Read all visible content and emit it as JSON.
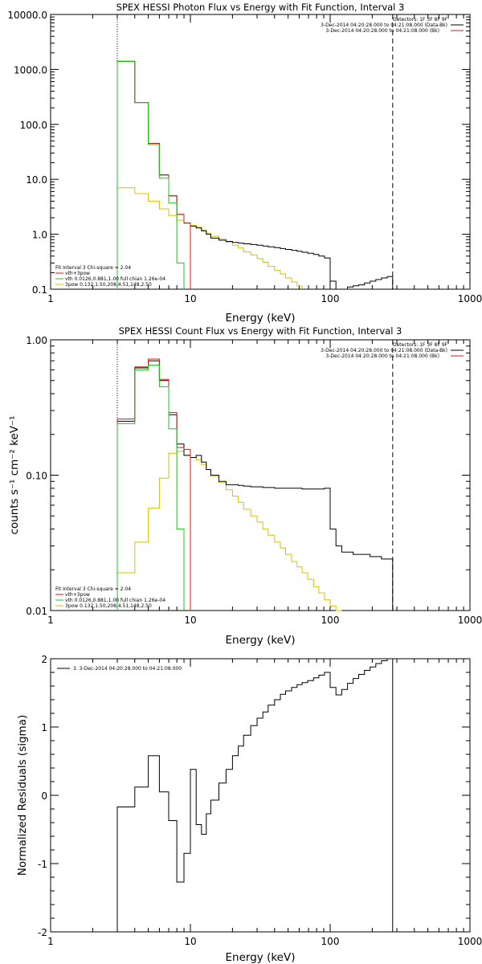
{
  "chart_data": [
    {
      "type": "line",
      "title": "SPEX HESSI Photon Flux vs Energy with Fit Function, Interval 3",
      "xlabel": "Energy (keV)",
      "ylabel": "",
      "xlog": true,
      "ylog": true,
      "xlim": [
        1,
        1000
      ],
      "ylim": [
        0.1,
        10000
      ],
      "x_ticks": [
        "1",
        "10",
        "100",
        "1000"
      ],
      "y_ticks": [
        "0.1",
        "1.0",
        "10.0",
        "100.0",
        "1000.0",
        "10000.0"
      ],
      "fit_range_keV": [
        3,
        280
      ],
      "legend_top": {
        "header": "Detectors: 1F 3F 8F 9F",
        "entries": [
          {
            "label": "3-Dec-2014 04:20:28.000 to 04:21:08.000 (Data-Bk)",
            "color": "#000000"
          },
          {
            "label": "3-Dec-2014 04:20:28.000 to 04:21:08.000 (Bk)",
            "color": "#d01818"
          }
        ]
      },
      "legend_bottom": [
        {
          "label": "Fit Interval 3   Chi-square = 2.04",
          "color": ""
        },
        {
          "label": "vth+3pow",
          "color": "#d01818"
        },
        {
          "label": "vth 0.0126,0.881,1.00  full chian 1.26e-04",
          "color": "#18c818"
        },
        {
          "label": "3pow 0.132,1.50,208,4.51,148,2.50",
          "color": "#d8c000"
        }
      ],
      "edges": [
        3,
        4,
        5,
        6,
        7,
        8,
        9,
        10,
        11,
        12,
        13,
        14,
        16,
        18,
        20,
        22,
        24,
        27,
        30,
        33,
        36,
        40,
        44,
        48,
        53,
        58,
        63,
        69,
        76,
        83,
        91,
        100,
        110,
        121,
        133,
        146,
        160,
        176,
        193,
        212,
        233,
        256,
        280
      ],
      "series": [
        {
          "color": "#000000",
          "values": [
            1400,
            250,
            45,
            12,
            5,
            2.3,
            1.6,
            1.4,
            1.3,
            1.15,
            1.0,
            0.85,
            0.78,
            0.74,
            0.71,
            0.69,
            0.67,
            0.65,
            0.63,
            0.61,
            0.59,
            0.57,
            0.55,
            0.53,
            0.51,
            0.49,
            0.47,
            0.45,
            0.43,
            0.4,
            0.37,
            0.14,
            0.1,
            0.1,
            0.11,
            0.115,
            0.12,
            0.13,
            0.14,
            0.15,
            0.16,
            0.17
          ]
        },
        {
          "color": "#d01818",
          "values": [
            1400,
            250,
            45,
            12,
            5,
            2.3,
            1.6
          ]
        },
        {
          "color": "#18c818",
          "values": [
            1400,
            250,
            43,
            10.5,
            3.7,
            0.3
          ]
        },
        {
          "color": "#d8c000",
          "values": [
            7,
            5.5,
            4,
            2.9,
            2.2,
            1.8,
            1.6,
            1.45,
            1.35,
            1.2,
            1.05,
            0.92,
            0.82,
            0.72,
            0.63,
            0.56,
            0.48,
            0.42,
            0.36,
            0.31,
            0.26,
            0.22,
            0.19,
            0.16,
            0.135,
            0.115
          ]
        }
      ]
    },
    {
      "type": "line",
      "title": "SPEX HESSI Count Flux vs Energy with Fit Function, Interval 3",
      "xlabel": "Energy (keV)",
      "ylabel": "counts s⁻¹ cm⁻² keV⁻¹",
      "xlog": true,
      "ylog": true,
      "xlim": [
        1,
        1000
      ],
      "ylim": [
        0.01,
        1.0
      ],
      "x_ticks": [
        "1",
        "10",
        "100",
        "1000"
      ],
      "y_ticks": [
        "0.01",
        "0.10",
        "1.00"
      ],
      "fit_range_keV": [
        3,
        280
      ],
      "legend_top": {
        "header": "Detectors: 1F 3F 8F 9F",
        "entries": [
          {
            "label": "3-Dec-2014 04:20:28.000 to 04:21:08.000 (Data-Bk)",
            "color": "#000000"
          },
          {
            "label": "3-Dec-2014 04:20:28.000 to 04:21:08.000 (Bk)",
            "color": "#d01818"
          }
        ]
      },
      "legend_bottom": [
        {
          "label": "Fit Interval 3   Chi-square = 2.04",
          "color": ""
        },
        {
          "label": "vth+3pow",
          "color": "#d01818"
        },
        {
          "label": "vth 0.0126,0.881,1.00  full chian 1.26e-04",
          "color": "#18c818"
        },
        {
          "label": "3pow 0.132,1.50,208,4.51,148,2.50",
          "color": "#d8c000"
        }
      ],
      "edges": [
        3,
        4,
        5,
        6,
        7,
        8,
        9,
        10,
        11,
        12,
        13,
        14,
        16,
        18,
        20,
        22,
        24,
        27,
        30,
        33,
        36,
        40,
        44,
        48,
        53,
        58,
        63,
        69,
        76,
        83,
        91,
        100,
        110,
        121,
        133,
        146,
        160,
        176,
        193,
        212,
        233,
        256,
        280
      ],
      "series": [
        {
          "color": "#000000",
          "values": [
            0.25,
            0.62,
            0.7,
            0.5,
            0.28,
            0.17,
            0.14,
            0.135,
            0.14,
            0.125,
            0.11,
            0.1,
            0.09,
            0.085,
            0.085,
            0.084,
            0.083,
            0.082,
            0.082,
            0.081,
            0.081,
            0.08,
            0.08,
            0.08,
            0.08,
            0.08,
            0.079,
            0.079,
            0.079,
            0.079,
            0.08,
            0.04,
            0.03,
            0.027,
            0.027,
            0.026,
            0.026,
            0.026,
            0.025,
            0.025,
            0.024,
            0.024
          ]
        },
        {
          "color": "#d01818",
          "values": [
            0.26,
            0.63,
            0.72,
            0.51,
            0.29,
            0.16,
            0.155
          ]
        },
        {
          "color": "#18c818",
          "values": [
            0.24,
            0.6,
            0.65,
            0.45,
            0.22,
            0.04
          ]
        },
        {
          "color": "#d8c000",
          "values": [
            0.019,
            0.032,
            0.057,
            0.095,
            0.145,
            0.15,
            0.14,
            0.135,
            0.13,
            0.12,
            0.11,
            0.098,
            0.088,
            0.078,
            0.07,
            0.063,
            0.056,
            0.05,
            0.045,
            0.04,
            0.036,
            0.032,
            0.029,
            0.026,
            0.023,
            0.021,
            0.019,
            0.017,
            0.015,
            0.0135,
            0.012,
            0.0108,
            0.01
          ]
        }
      ]
    },
    {
      "type": "line",
      "title": "",
      "xlabel": "Energy (keV)",
      "ylabel": "Normalized Residuals (sigma)",
      "xlog": true,
      "ylog": false,
      "xlim": [
        1,
        1000
      ],
      "ylim": [
        -2,
        2
      ],
      "x_ticks": [
        "1",
        "10",
        "100",
        "1000"
      ],
      "y_ticks": [
        "-2",
        "-1",
        "0",
        "1",
        "2"
      ],
      "legend_top": {
        "header": "",
        "entries": [
          {
            "label": "3.  3-Dec-2014 04:20:28.000 to 04:21:08.000",
            "color": "#000000"
          }
        ]
      },
      "legend_bottom": [],
      "edges": [
        3,
        4,
        5,
        6,
        7,
        8,
        9,
        10,
        11,
        12,
        13,
        14,
        16,
        18,
        20,
        22,
        24,
        27,
        30,
        33,
        36,
        40,
        44,
        48,
        53,
        58,
        63,
        69,
        76,
        83,
        91,
        100,
        110,
        121,
        133,
        146,
        160,
        176,
        193,
        212,
        233,
        256,
        280
      ],
      "series": [
        {
          "color": "#000000",
          "values": [
            -0.17,
            0.12,
            0.58,
            0.05,
            -0.37,
            -1.27,
            -0.85,
            0.38,
            -0.43,
            -0.57,
            -0.27,
            -0.07,
            0.18,
            0.38,
            0.58,
            0.72,
            0.88,
            1.02,
            1.13,
            1.22,
            1.32,
            1.4,
            1.48,
            1.53,
            1.58,
            1.62,
            1.65,
            1.68,
            1.72,
            1.76,
            1.8,
            1.58,
            1.47,
            1.55,
            1.64,
            1.71,
            1.77,
            1.83,
            1.88,
            1.93,
            1.97,
            2.0
          ]
        }
      ]
    }
  ]
}
